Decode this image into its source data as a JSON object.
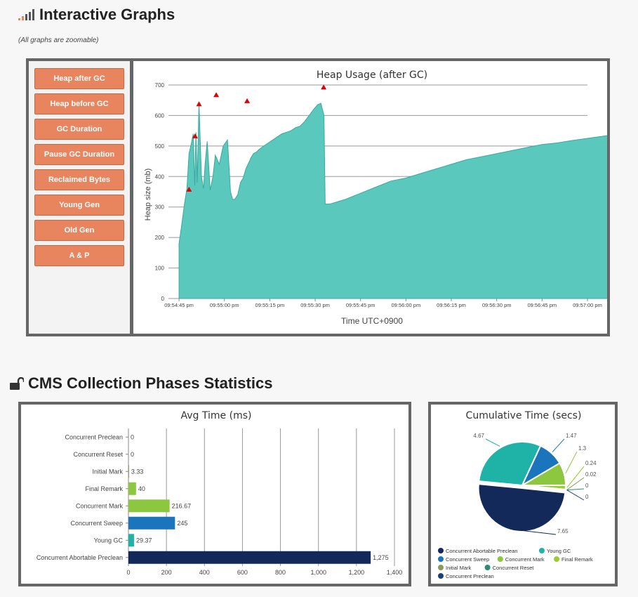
{
  "graphs": {
    "title": "Interactive Graphs",
    "note": "(All graphs are zoomable)",
    "buttons": [
      "Heap after GC",
      "Heap before GC",
      "GC Duration",
      "Pause GC Duration",
      "Reclaimed Bytes",
      "Young Gen",
      "Old Gen",
      "A & P"
    ]
  },
  "cms": {
    "title": "CMS Collection Phases Statistics"
  },
  "colors": {
    "button": "#e8855f",
    "area": "#5bc8bd",
    "marker": "#e00000",
    "navy": "#13295a",
    "green": "#8dc63f",
    "blue": "#1b75bc",
    "teal": "#1fb2a6"
  },
  "chart_data": [
    {
      "type": "area",
      "title": "Heap Usage (after GC)",
      "xlabel": "Time UTC+0900",
      "ylabel": "Heap size (mb)",
      "ylim": [
        0,
        700
      ],
      "yticks": [
        0,
        100,
        200,
        300,
        400,
        500,
        600,
        700
      ],
      "xticks": [
        "09:54:45 pm",
        "09:55:00 pm",
        "09:55:15 pm",
        "09:55:30 pm",
        "09:55:45 pm",
        "09:56:00 pm",
        "09:56:15 pm",
        "09:56:30 pm",
        "09:56:45 pm",
        "09:57:00 pm"
      ],
      "x_start_offset_s": -3.5,
      "x": [
        0,
        1,
        1.8,
        2.6,
        3.3,
        4.1,
        4.7,
        5.2,
        5.6,
        6,
        6.6,
        7.4,
        8.1,
        8.6,
        9.3,
        10.3,
        11.2,
        12,
        13.3,
        14.6,
        16,
        17,
        17.7,
        18.4,
        19.4,
        20.3,
        21.2,
        22.1,
        22.8,
        23.3,
        23.7,
        24.6,
        25.6,
        26.6,
        28,
        29.5,
        31,
        32.5,
        34,
        35.5,
        37,
        38.5,
        40,
        41.5,
        43,
        44.5,
        45.8,
        46.9,
        47.9,
        48.3,
        50,
        55,
        60,
        65,
        70,
        75,
        80,
        85,
        90,
        95,
        100,
        105,
        110,
        115,
        120,
        125,
        130,
        135,
        140,
        145,
        147.6
      ],
      "y": [
        180,
        250,
        310,
        360,
        475,
        510,
        540,
        370,
        545,
        380,
        640,
        400,
        360,
        440,
        515,
        355,
        400,
        470,
        440,
        500,
        520,
        350,
        325,
        325,
        340,
        380,
        395,
        425,
        440,
        450,
        460,
        475,
        480,
        490,
        500,
        510,
        520,
        530,
        540,
        545,
        550,
        560,
        565,
        580,
        600,
        620,
        635,
        640,
        600,
        310,
        310,
        325,
        345,
        365,
        385,
        395,
        410,
        425,
        440,
        455,
        465,
        475,
        485,
        495,
        505,
        510,
        518,
        525,
        532,
        540,
        545
      ],
      "markers": [
        {
          "x": 3.3,
          "y": 355
        },
        {
          "x": 5.3,
          "y": 530
        },
        {
          "x": 6.6,
          "y": 635
        },
        {
          "x": 12.3,
          "y": 665
        },
        {
          "x": 22.5,
          "y": 645
        },
        {
          "x": 47.8,
          "y": 690
        }
      ],
      "grid": true,
      "legend": "none"
    },
    {
      "type": "bar",
      "orientation": "horizontal",
      "title": "Avg Time (ms)",
      "categories": [
        "Concurrent Preclean",
        "Concurrent Reset",
        "Initial Mark",
        "Final Remark",
        "Concurrent Mark",
        "Concurrent Sweep",
        "Young GC",
        "Concurrent Abortable Preclean"
      ],
      "values": [
        0,
        0,
        3.33,
        40,
        216.67,
        245,
        29.37,
        1275
      ],
      "labels": [
        "0",
        "0",
        "3.33",
        "40",
        "216.67",
        "245",
        "29.37",
        "1,275"
      ],
      "colors": [
        "#1fb2a6",
        "#1fb2a6",
        "#8a9a5b",
        "#8dc63f",
        "#8dc63f",
        "#1b75bc",
        "#1fb2a6",
        "#13295a"
      ],
      "xlim": [
        0,
        1400
      ],
      "xticks": [
        "0",
        "200",
        "400",
        "600",
        "800",
        "1,000",
        "1,200",
        "1,400"
      ],
      "grid": true
    },
    {
      "type": "pie",
      "title": "Cumulative Time (secs)",
      "slices": [
        {
          "name": "Concurrent Abortable Preclean",
          "value": 7.65,
          "label": "7.65",
          "color": "#13295a"
        },
        {
          "name": "Young GC",
          "value": 4.67,
          "label": "4.67",
          "color": "#1fb2a6"
        },
        {
          "name": "Concurrent Sweep",
          "value": 1.47,
          "label": "1.47",
          "color": "#1b75bc"
        },
        {
          "name": "Concurrent Mark",
          "value": 1.3,
          "label": "1.3",
          "color": "#8dc63f"
        },
        {
          "name": "Final Remark",
          "value": 0.24,
          "label": "0.24",
          "color": "#9acd32"
        },
        {
          "name": "Initial Mark",
          "value": 0.02,
          "label": "0.02",
          "color": "#8a9a5b"
        },
        {
          "name": "Concurrent Reset",
          "value": 0,
          "label": "0",
          "color": "#2e8b74"
        },
        {
          "name": "Concurrent Preclean",
          "value": 0,
          "label": "0",
          "color": "#1f3f7a"
        }
      ],
      "legend_rows": [
        [
          {
            "name": "Concurrent Abortable Preclean",
            "color": "#13295a"
          },
          {
            "name": "Young GC",
            "color": "#1fb2a6"
          }
        ],
        [
          {
            "name": "Concurrent Sweep",
            "color": "#1b75bc"
          },
          {
            "name": "Concurrent Mark",
            "color": "#8dc63f"
          },
          {
            "name": "Final Remark",
            "color": "#9acd32"
          }
        ],
        [
          {
            "name": "Initial Mark",
            "color": "#8a9a5b"
          },
          {
            "name": "Concurrent Reset",
            "color": "#2e8b74"
          }
        ],
        [
          {
            "name": "Concurrent Preclean",
            "color": "#1f3f7a"
          }
        ]
      ],
      "legend": "bottom"
    }
  ]
}
